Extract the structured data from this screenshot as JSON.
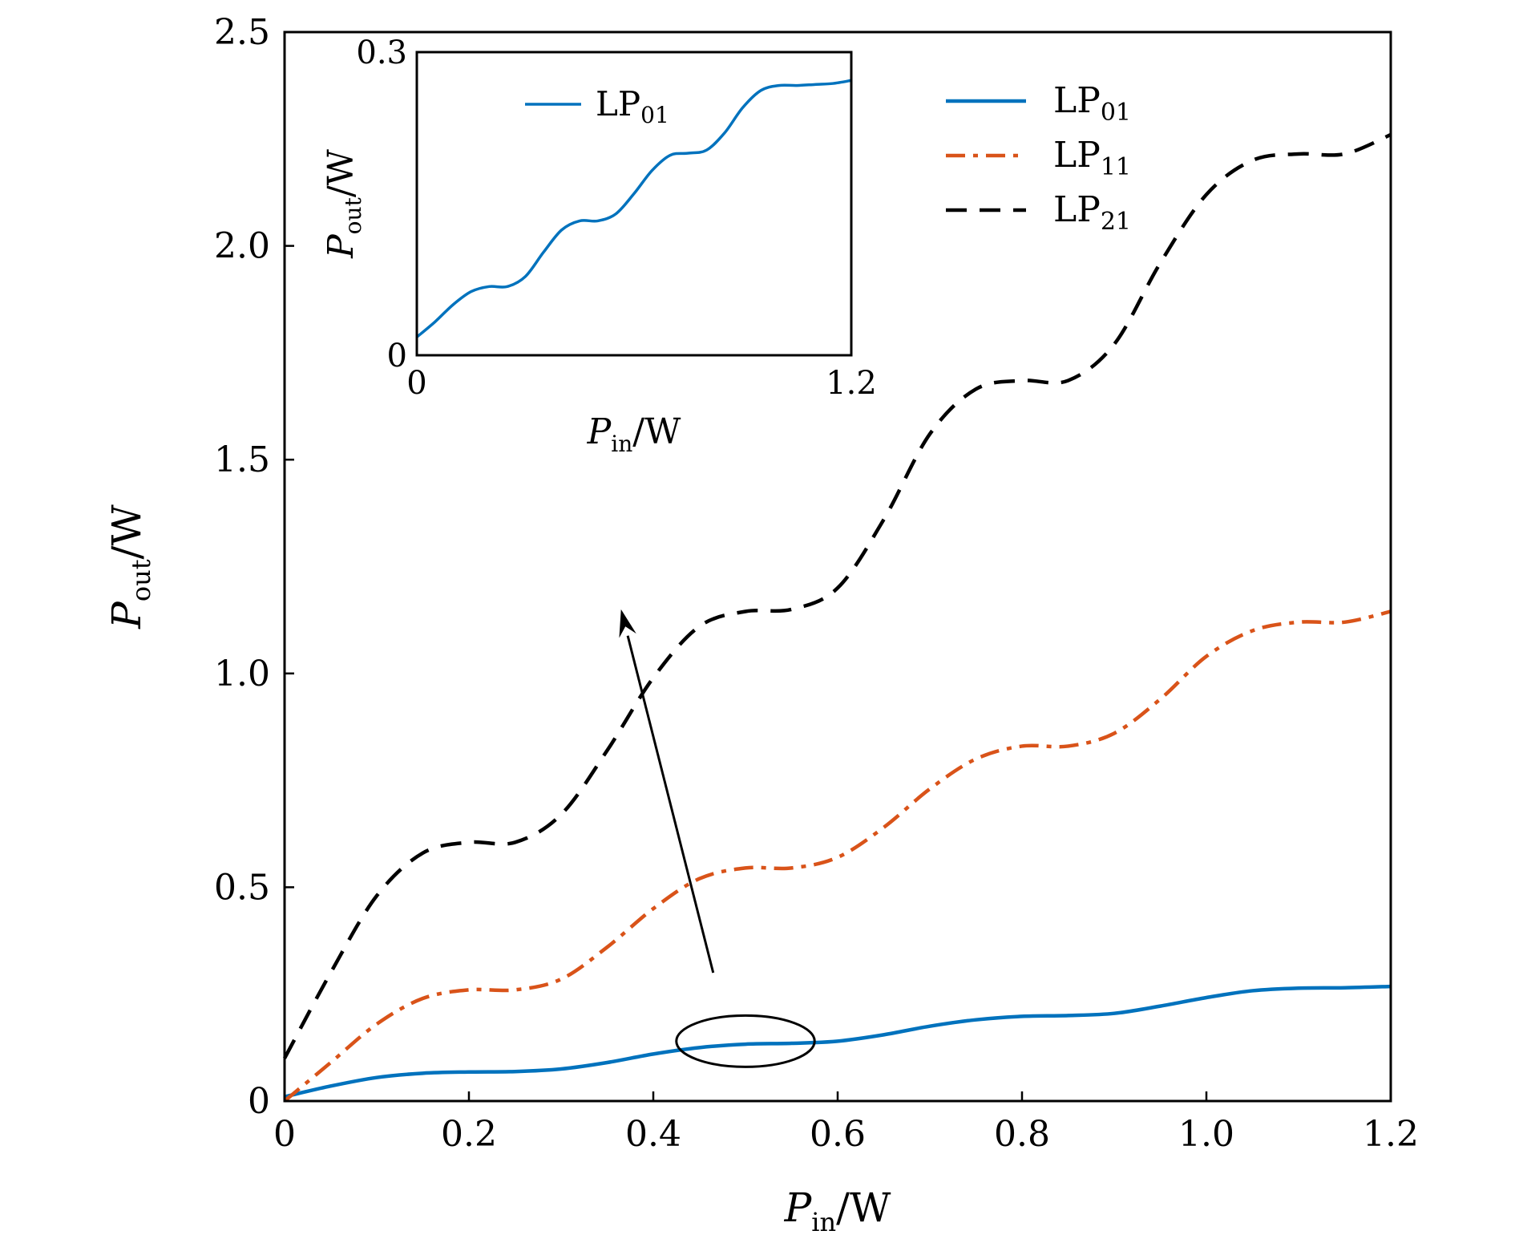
{
  "chart_data": [
    {
      "type": "line",
      "xlabel": {
        "main": "P",
        "sub": "in",
        "unit": "/W"
      },
      "ylabel": {
        "main": "P",
        "sub": "out",
        "unit": "/W"
      },
      "xlim": [
        0,
        1.2
      ],
      "ylim": [
        0,
        2.5
      ],
      "xticks": [
        "0",
        "0.2",
        "0.4",
        "0.6",
        "0.8",
        "1.0",
        "1.2"
      ],
      "yticks": [
        "0",
        "0.5",
        "1.0",
        "1.5",
        "2.0",
        "2.5"
      ],
      "legend_position": "top-right",
      "grid": false,
      "series": [
        {
          "name": "LP01",
          "label": {
            "main": "LP",
            "sub": "01"
          },
          "color": "#0072BD",
          "style": "solid",
          "x": [
            0,
            0.05,
            0.1,
            0.15,
            0.2,
            0.25,
            0.3,
            0.35,
            0.4,
            0.45,
            0.5,
            0.55,
            0.6,
            0.65,
            0.7,
            0.75,
            0.8,
            0.85,
            0.9,
            0.95,
            1.0,
            1.05,
            1.1,
            1.15,
            1.2
          ],
          "y": [
            0.01,
            0.035,
            0.055,
            0.065,
            0.068,
            0.069,
            0.075,
            0.09,
            0.11,
            0.125,
            0.133,
            0.135,
            0.14,
            0.155,
            0.175,
            0.19,
            0.198,
            0.2,
            0.205,
            0.222,
            0.242,
            0.258,
            0.264,
            0.265,
            0.268
          ]
        },
        {
          "name": "LP11",
          "label": {
            "main": "LP",
            "sub": "11"
          },
          "color": "#D95319",
          "style": "dashdot",
          "x": [
            0,
            0.05,
            0.1,
            0.15,
            0.2,
            0.25,
            0.3,
            0.35,
            0.4,
            0.45,
            0.5,
            0.55,
            0.6,
            0.65,
            0.7,
            0.75,
            0.8,
            0.85,
            0.9,
            0.95,
            1.0,
            1.05,
            1.1,
            1.15,
            1.2
          ],
          "y": [
            0.0,
            0.09,
            0.18,
            0.24,
            0.26,
            0.26,
            0.285,
            0.36,
            0.45,
            0.52,
            0.545,
            0.545,
            0.57,
            0.64,
            0.73,
            0.8,
            0.83,
            0.83,
            0.86,
            0.94,
            1.04,
            1.1,
            1.12,
            1.12,
            1.145
          ]
        },
        {
          "name": "LP21",
          "label": {
            "main": "LP",
            "sub": "21"
          },
          "color": "#000000",
          "style": "dashed",
          "x": [
            0,
            0.05,
            0.1,
            0.15,
            0.2,
            0.25,
            0.3,
            0.35,
            0.4,
            0.45,
            0.5,
            0.55,
            0.6,
            0.65,
            0.7,
            0.75,
            0.8,
            0.85,
            0.9,
            0.95,
            1.0,
            1.05,
            1.1,
            1.15,
            1.2
          ],
          "y": [
            0.1,
            0.3,
            0.48,
            0.58,
            0.605,
            0.605,
            0.67,
            0.82,
            0.99,
            1.11,
            1.145,
            1.15,
            1.2,
            1.36,
            1.56,
            1.665,
            1.685,
            1.685,
            1.77,
            1.96,
            2.12,
            2.2,
            2.215,
            2.215,
            2.26
          ]
        }
      ],
      "annotations": [
        {
          "type": "arrow",
          "from": [
            0.465,
            0.3
          ],
          "to": [
            0.365,
            1.15
          ]
        },
        {
          "type": "ellipse",
          "center": [
            0.5,
            0.14
          ],
          "rx": 0.075,
          "ry": 0.06
        }
      ]
    },
    {
      "type": "line",
      "inset": true,
      "xlabel": {
        "main": "P",
        "sub": "in",
        "unit": "/W"
      },
      "ylabel": {
        "main": "P",
        "sub": "out",
        "unit": "/W"
      },
      "xlim": [
        0,
        1.2
      ],
      "ylim": [
        0,
        0.3
      ],
      "xticks": [
        "0",
        "1.2"
      ],
      "yticks": [
        "0",
        "0.3"
      ],
      "legend_position": "top-left",
      "series": [
        {
          "name": "LP01",
          "label": {
            "main": "LP",
            "sub": "01"
          },
          "color": "#0072BD",
          "style": "solid",
          "x": [
            0,
            0.05,
            0.1,
            0.15,
            0.2,
            0.25,
            0.3,
            0.35,
            0.4,
            0.45,
            0.5,
            0.55,
            0.6,
            0.65,
            0.7,
            0.75,
            0.8,
            0.85,
            0.9,
            0.95,
            1.0,
            1.05,
            1.1,
            1.15,
            1.2
          ],
          "y": [
            0.018,
            0.033,
            0.05,
            0.063,
            0.068,
            0.068,
            0.078,
            0.102,
            0.124,
            0.133,
            0.133,
            0.14,
            0.16,
            0.183,
            0.198,
            0.2,
            0.203,
            0.22,
            0.245,
            0.262,
            0.267,
            0.267,
            0.268,
            0.269,
            0.272
          ]
        }
      ]
    }
  ]
}
